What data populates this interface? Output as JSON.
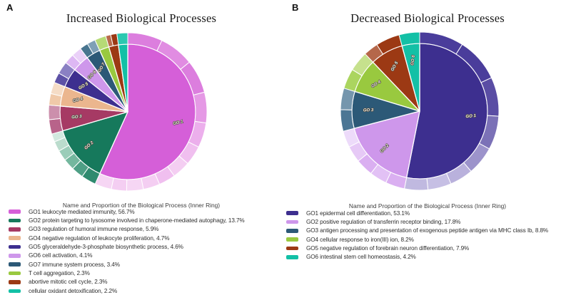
{
  "panels": {
    "a_letter": "A",
    "b_letter": "B"
  },
  "chart_data": [
    {
      "type": "pie",
      "panel": "A",
      "title": "Increased Biological Processes",
      "legend_title": "Name and Proportion of the Biological Process (Inner Ring)",
      "legend_position": "bottom",
      "has_outer_ring": true,
      "slices": [
        {
          "slice_label": "GO 1",
          "legend_label": "GO1 leukocyte mediated immunity",
          "pct": 56.7,
          "color": "#D55FD8",
          "outer": [
            [
              0.125,
              "#DC7EDE"
            ],
            [
              0.125,
              "#E18CE2"
            ],
            [
              0.12,
              "#DC7EDE"
            ],
            [
              0.11,
              "#E599E5"
            ],
            [
              0.09,
              "#ECAFEC"
            ],
            [
              0.07,
              "#F0BFEF"
            ],
            [
              0.065,
              "#F4CEF2"
            ],
            [
              0.06,
              "#F0BFEF"
            ],
            [
              0.06,
              "#F4CEF2"
            ],
            [
              0.06,
              "#F6D6F4"
            ],
            [
              0.055,
              "#F4CEF2"
            ],
            [
              0.06,
              "#F6D6F4"
            ]
          ]
        },
        {
          "slice_label": "GO 2",
          "legend_label": "GO2 protein targeting to lysosome involved in chaperone-mediated autophagy",
          "pct": 13.7,
          "color": "#16795C",
          "outer": [
            [
              0.22,
              "#2F8A6F"
            ],
            [
              0.18,
              "#4E9F85"
            ],
            [
              0.17,
              "#74B79E"
            ],
            [
              0.16,
              "#9BCDB9"
            ],
            [
              0.15,
              "#BBDCCD"
            ],
            [
              0.12,
              "#D2E9DF"
            ]
          ]
        },
        {
          "slice_label": "GO 3",
          "legend_label": "GO3 regulation of humoral immune response",
          "pct": 5.9,
          "color": "#A63A64",
          "outer": [
            [
              0.5,
              "#B8638A"
            ],
            [
              0.5,
              "#CC8FAC"
            ]
          ]
        },
        {
          "slice_label": "GO 4",
          "legend_label": "GO4 negative regulation of leukocyte proliferation",
          "pct": 4.7,
          "color": "#EBB68E",
          "outer": [
            [
              0.5,
              "#F0C9A9"
            ],
            [
              0.5,
              "#F5DCC6"
            ]
          ]
        },
        {
          "slice_label": "GO 5",
          "legend_label": "GO5 glyceraldehyde-3-phosphate biosynthetic process",
          "pct": 4.6,
          "color": "#3D2F8F",
          "outer": [
            [
              0.45,
              "#5D51A6"
            ],
            [
              0.55,
              "#8A80C3"
            ]
          ]
        },
        {
          "slice_label": "GO 6",
          "legend_label": "GO6 cell activation",
          "pct": 4.1,
          "color": "#CE97EB",
          "outer": [
            [
              0.5,
              "#DDB7F3"
            ],
            [
              0.5,
              "#EAD0F8"
            ]
          ]
        },
        {
          "slice_label": "GO 7",
          "legend_label": "GO7 immune system process",
          "pct": 3.4,
          "color": "#2C5977",
          "outer": [
            [
              0.5,
              "#48758F"
            ],
            [
              0.5,
              "#7FA0B6"
            ]
          ]
        },
        {
          "slice_label": null,
          "legend_label": "T cell aggregation",
          "pct": 2.3,
          "color": "#99C93F",
          "outer": [
            [
              1.0,
              "#B6DA76"
            ]
          ]
        },
        {
          "slice_label": null,
          "legend_label": "abortive mitotic cell cycle",
          "pct": 2.3,
          "color": "#9C3914",
          "outer": [
            [
              0.45,
              "#B96A4B"
            ],
            [
              0.55,
              "#9C3914"
            ]
          ]
        },
        {
          "slice_label": null,
          "legend_label": "cellular oxidant detoxification",
          "pct": 2.2,
          "color": "#13C0A6",
          "outer": [
            [
              1.0,
              "#2BC8B0"
            ]
          ]
        }
      ]
    },
    {
      "type": "pie",
      "panel": "B",
      "title": "Decreased Biological Processes",
      "legend_title": "Name and Proportion of the Biological Process (Inner Ring)",
      "legend_position": "bottom",
      "has_outer_ring": true,
      "slices": [
        {
          "slice_label": "GO 1",
          "legend_label": "GO1 epidermal cell differentiation",
          "pct": 53.1,
          "color": "#3D2F8F",
          "outer": [
            [
              0.17,
              "#4A3D9B"
            ],
            [
              0.17,
              "#4A3D9B"
            ],
            [
              0.15,
              "#5A4DA4"
            ],
            [
              0.13,
              "#7B71B7"
            ],
            [
              0.11,
              "#9C93CB"
            ],
            [
              0.09,
              "#B9B1DC"
            ],
            [
              0.09,
              "#C6BFE4"
            ],
            [
              0.09,
              "#C0B9E0"
            ]
          ]
        },
        {
          "slice_label": "GO 2",
          "legend_label": "GO2 positive regulation of transferrin receptor binding",
          "pct": 17.8,
          "color": "#CE97EB",
          "outer": [
            [
              0.22,
              "#DAAFF1"
            ],
            [
              0.2,
              "#E2C1F5"
            ],
            [
              0.2,
              "#DAAFF1"
            ],
            [
              0.19,
              "#E6C9F6"
            ],
            [
              0.19,
              "#EDDBFA"
            ]
          ]
        },
        {
          "slice_label": "GO 3",
          "legend_label": "GO3 antigen processing and presentation of exogenous peptide antigen via MHC class Ib",
          "pct": 8.8,
          "color": "#2C5977",
          "outer": [
            [
              0.5,
              "#4C7694"
            ],
            [
              0.5,
              "#7596AD"
            ]
          ]
        },
        {
          "slice_label": "GO 4",
          "legend_label": "GO4 cellular response to iron(III) ion",
          "pct": 8.2,
          "color": "#99C93F",
          "outer": [
            [
              0.5,
              "#ABD55F"
            ],
            [
              0.5,
              "#C6E18D"
            ]
          ]
        },
        {
          "slice_label": "GO 5",
          "legend_label": "GO5 negative regulation of forebrain neuron differentiation",
          "pct": 7.9,
          "color": "#9C3914",
          "outer": [
            [
              0.38,
              "#B5674A"
            ],
            [
              0.62,
              "#9C3914"
            ]
          ]
        },
        {
          "slice_label": "GO 6",
          "legend_label": "GO6 intestinal stem cell homeostasis",
          "pct": 4.2,
          "color": "#13C0A6",
          "outer": [
            [
              1.0,
              "#13C0A6"
            ]
          ]
        }
      ]
    }
  ],
  "geometry_note": "inner ring radius 95px, outer ring radius 111px"
}
